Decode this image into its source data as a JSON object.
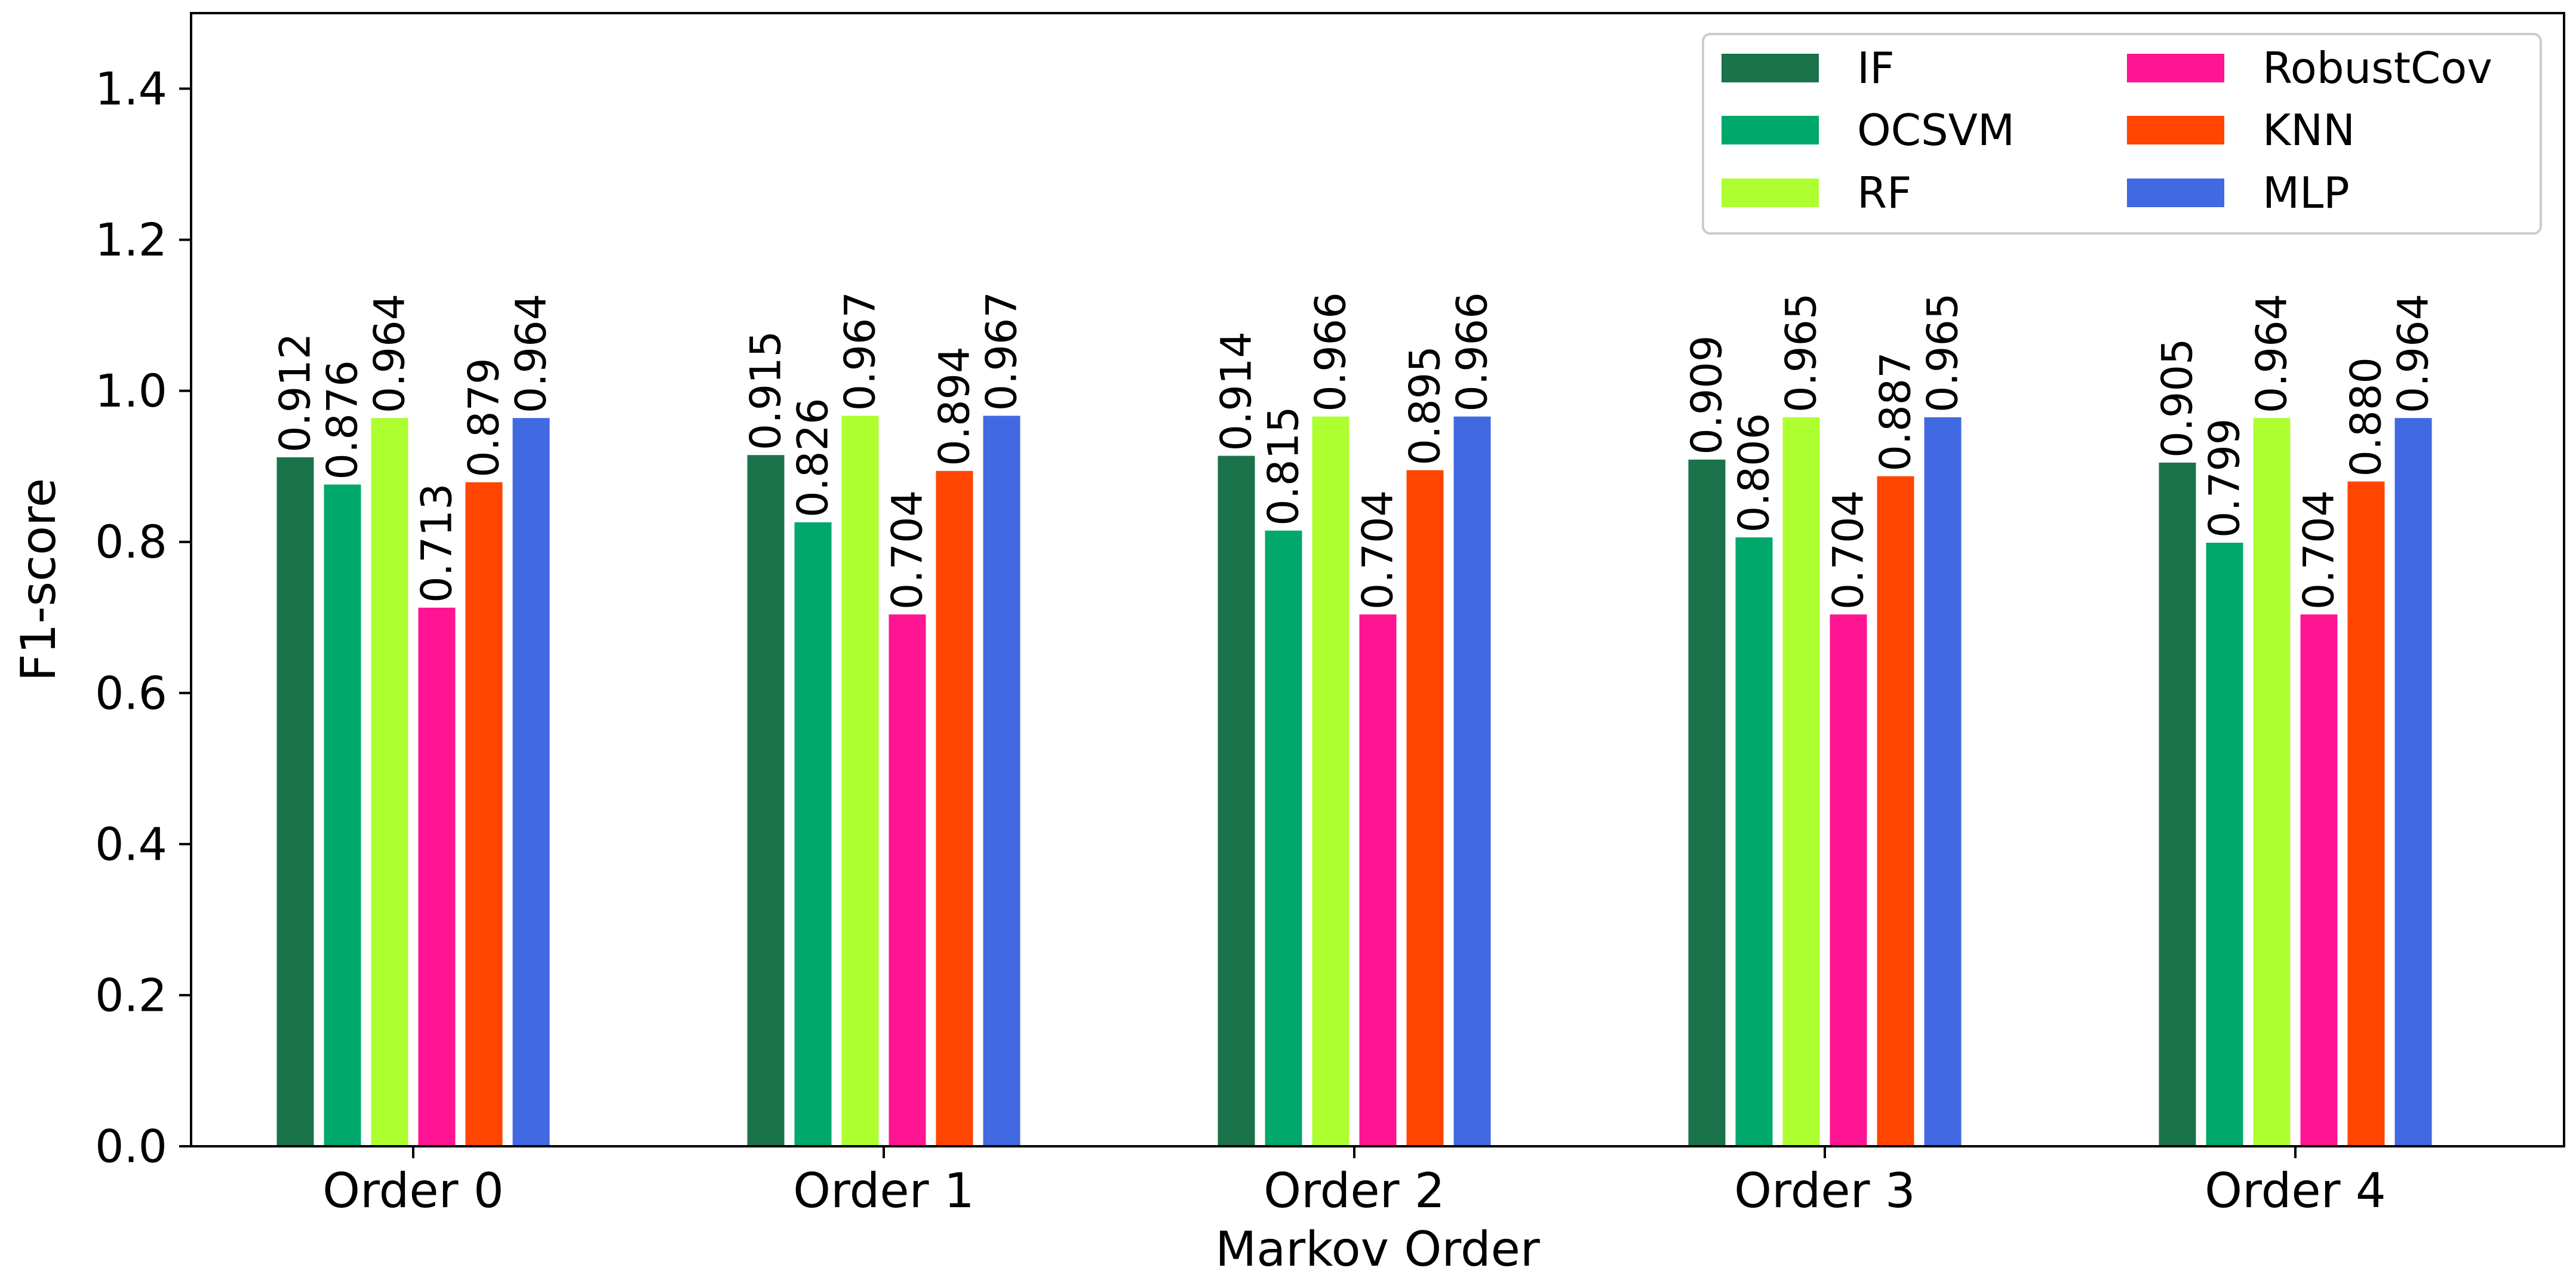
{
  "chart_data": {
    "type": "bar",
    "title": "",
    "xlabel": "Markov Order",
    "ylabel": "F1-score",
    "ylim": [
      0,
      1.5
    ],
    "yticks": [
      "0.0",
      "0.2",
      "0.4",
      "0.6",
      "0.8",
      "1.0",
      "1.2",
      "1.4"
    ],
    "categories": [
      "Order 0",
      "Order 1",
      "Order 2",
      "Order 3",
      "Order 4"
    ],
    "grid": false,
    "legend_position": "top-right",
    "legend_columns": 2,
    "series": [
      {
        "name": "IF",
        "color": "#1a734a",
        "values": [
          0.912,
          0.915,
          0.914,
          0.909,
          0.905
        ],
        "labels": [
          "0.912",
          "0.915",
          "0.914",
          "0.909",
          "0.905"
        ]
      },
      {
        "name": "OCSVM",
        "color": "#00a86b",
        "values": [
          0.876,
          0.826,
          0.815,
          0.806,
          0.799
        ],
        "labels": [
          "0.876",
          "0.826",
          "0.815",
          "0.806",
          "0.799"
        ]
      },
      {
        "name": "RF",
        "color": "#adff2f",
        "values": [
          0.964,
          0.967,
          0.966,
          0.965,
          0.964
        ],
        "labels": [
          "0.964",
          "0.967",
          "0.966",
          "0.965",
          "0.964"
        ]
      },
      {
        "name": "RobustCov",
        "color": "#ff1493",
        "values": [
          0.713,
          0.704,
          0.704,
          0.704,
          0.704
        ],
        "labels": [
          "0.713",
          "0.704",
          "0.704",
          "0.704",
          "0.704"
        ]
      },
      {
        "name": "KNN",
        "color": "#ff4500",
        "values": [
          0.879,
          0.894,
          0.895,
          0.887,
          0.88
        ],
        "labels": [
          "0.879",
          "0.894",
          "0.895",
          "0.887",
          "0.880"
        ]
      },
      {
        "name": "MLP",
        "color": "#4169e1",
        "values": [
          0.964,
          0.967,
          0.966,
          0.965,
          0.964
        ],
        "labels": [
          "0.964",
          "0.967",
          "0.966",
          "0.965",
          "0.964"
        ]
      }
    ]
  }
}
